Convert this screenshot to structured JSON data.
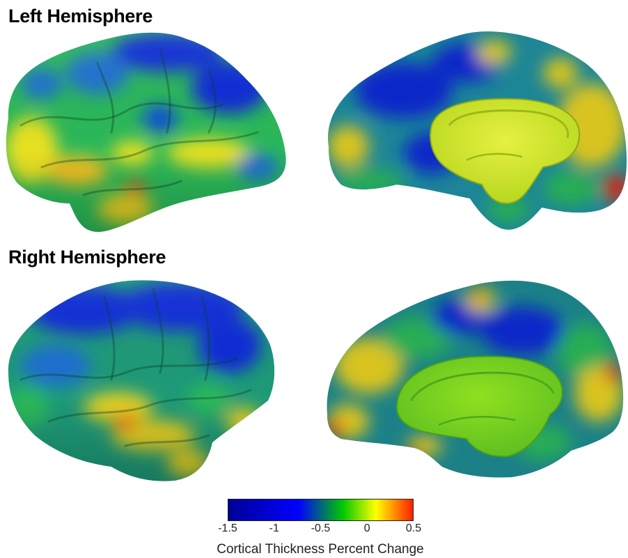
{
  "titles": {
    "left": "Left Hemisphere",
    "right": "Right Hemisphere"
  },
  "colorbar": {
    "ticks": [
      "-1.5",
      "-1",
      "-0.5",
      "0",
      "0.5"
    ],
    "range": [
      -1.5,
      0.5
    ],
    "label": "Cortical Thickness Percent Change",
    "colors": {
      "dark_blue": "#000096",
      "blue": "#0000ff",
      "green": "#00c800",
      "yellow": "#ffff00",
      "red": "#ff1e00"
    }
  }
}
